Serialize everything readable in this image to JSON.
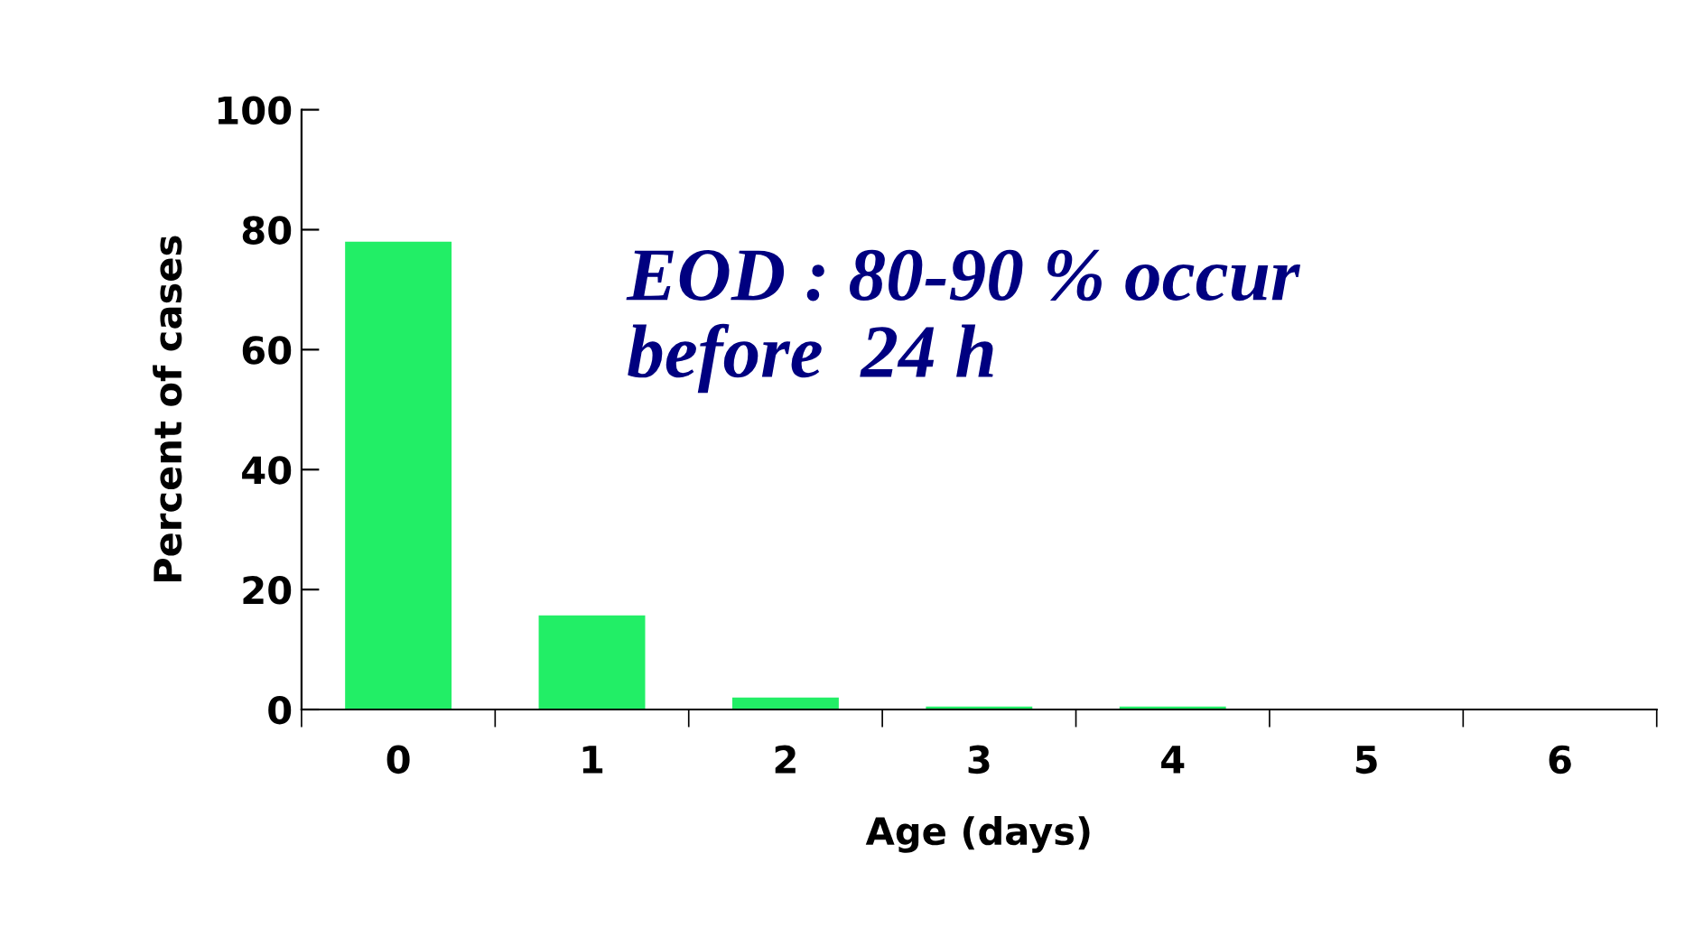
{
  "chart_data": {
    "type": "bar",
    "xlabel": "Age (days)",
    "ylabel": "Percent of cases",
    "categories": [
      "0",
      "1",
      "2",
      "3",
      "4",
      "5",
      "6"
    ],
    "values": [
      78,
      15.7,
      2,
      0.5,
      0.5,
      0,
      0
    ],
    "color": "#22ee66",
    "ylim": [
      0,
      100
    ],
    "yticks": [
      0,
      20,
      40,
      60,
      80,
      100
    ],
    "grid": false,
    "annotations": [
      "EOD : 80-90 % occur\nbefore  24 h"
    ]
  }
}
